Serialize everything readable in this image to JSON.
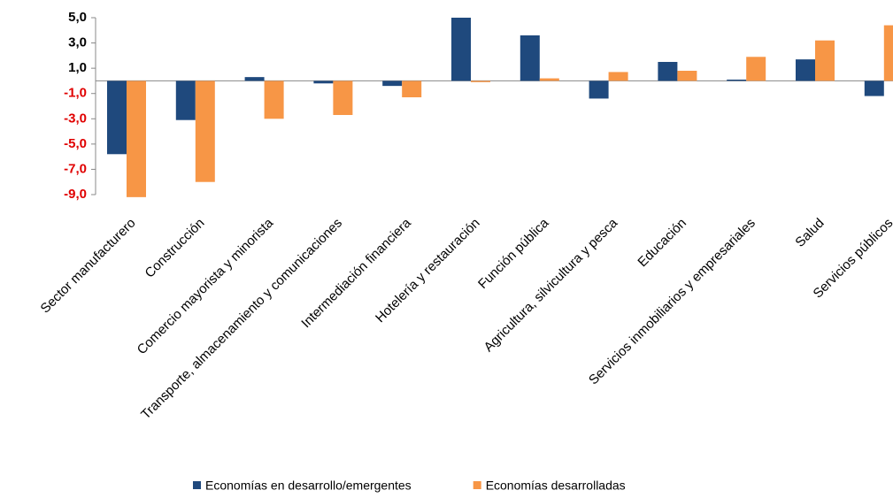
{
  "chart_data": {
    "type": "bar",
    "categories": [
      "Sector manufacturero",
      "Construcción",
      "Comercio mayorista y minorista",
      "Transporte, almacenamiento y comunicaciones",
      "Intermediación financiera",
      "Hotelería y restauración",
      "Función pública",
      "Agricultura, silvicultura y pesca",
      "Educación",
      "Servicios inmobiliarios y empresariales",
      "Salud",
      "Servicios públicos"
    ],
    "series": [
      {
        "name": "Economías en desarrollo/emergentes",
        "color": "#1f497d",
        "values": [
          -5.8,
          -3.1,
          0.3,
          -0.2,
          -0.4,
          5.0,
          3.6,
          -1.4,
          1.5,
          0.1,
          1.7,
          -1.2
        ]
      },
      {
        "name": "Economías desarrolladas",
        "color": "#f79646",
        "values": [
          -9.2,
          -8.0,
          -3.0,
          -2.7,
          -1.3,
          -0.1,
          0.2,
          0.7,
          0.8,
          1.9,
          3.2,
          4.4
        ]
      }
    ],
    "ylim": [
      -9,
      5
    ],
    "yticks": [
      {
        "value": 5,
        "label": "5,0"
      },
      {
        "value": 3,
        "label": "3,0"
      },
      {
        "value": 1,
        "label": "1,0"
      },
      {
        "value": -1,
        "label": "-1,0"
      },
      {
        "value": -3,
        "label": "-3,0"
      },
      {
        "value": -5,
        "label": "-5,0"
      },
      {
        "value": -7,
        "label": "-7,0"
      },
      {
        "value": -9,
        "label": "-9,0"
      }
    ],
    "negative_tick_color": "#e00000",
    "legend": "bottom"
  }
}
